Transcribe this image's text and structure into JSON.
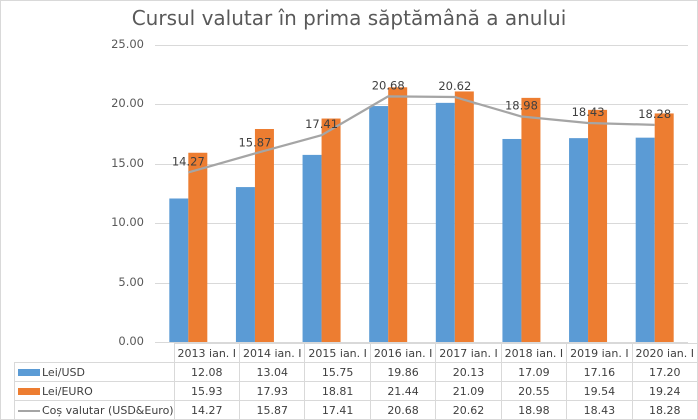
{
  "chart_data": {
    "type": "bar",
    "title": "Cursul valutar în prima săptămână a anului",
    "xlabel": "",
    "ylabel": "",
    "ylim": [
      0,
      25
    ],
    "y_ticks": [
      "0.00",
      "5.00",
      "10.00",
      "15.00",
      "20.00",
      "25.00"
    ],
    "grid": true,
    "legend_position": "data-table",
    "categories": [
      "2013 ian. I",
      "2014 ian. I",
      "2015 ian. I",
      "2016 ian. I",
      "2017 ian. I",
      "2018 ian. I",
      "2019 ian. I",
      "2020 ian. I"
    ],
    "series": [
      {
        "name": "Lei/USD",
        "type": "bar",
        "color": "#5B9BD5",
        "values": [
          12.08,
          13.04,
          15.75,
          19.86,
          20.13,
          17.09,
          17.16,
          17.2
        ]
      },
      {
        "name": "Lei/EURO",
        "type": "bar",
        "color": "#ED7D31",
        "values": [
          15.93,
          17.93,
          18.81,
          21.44,
          21.09,
          20.55,
          19.54,
          19.24
        ]
      },
      {
        "name": "Coș valutar (USD&Euro)",
        "type": "line",
        "color": "#A5A5A5",
        "values": [
          14.27,
          15.87,
          17.41,
          20.68,
          20.62,
          18.98,
          18.43,
          18.28
        ],
        "data_labels": true
      }
    ]
  },
  "table": {
    "headers": [
      "2013 ian. I",
      "2014 ian. I",
      "2015 ian. I",
      "2016 ian. I",
      "2017 ian. I",
      "2018 ian. I",
      "2019 ian. I",
      "2020 ian. I"
    ],
    "rows": [
      {
        "label": "Lei/USD",
        "cells": [
          "12.08",
          "13.04",
          "15.75",
          "19.86",
          "20.13",
          "17.09",
          "17.16",
          "17.20"
        ]
      },
      {
        "label": "Lei/EURO",
        "cells": [
          "15.93",
          "17.93",
          "18.81",
          "21.44",
          "21.09",
          "20.55",
          "19.54",
          "19.24"
        ]
      },
      {
        "label": "Coș valutar (USD&Euro)",
        "cells": [
          "14.27",
          "15.87",
          "17.41",
          "20.68",
          "20.62",
          "18.98",
          "18.43",
          "18.28"
        ]
      }
    ]
  },
  "line_labels": [
    "14.27",
    "15.87",
    "17.41",
    "20.68",
    "20.62",
    "18.98",
    "18.43",
    "18.28"
  ]
}
